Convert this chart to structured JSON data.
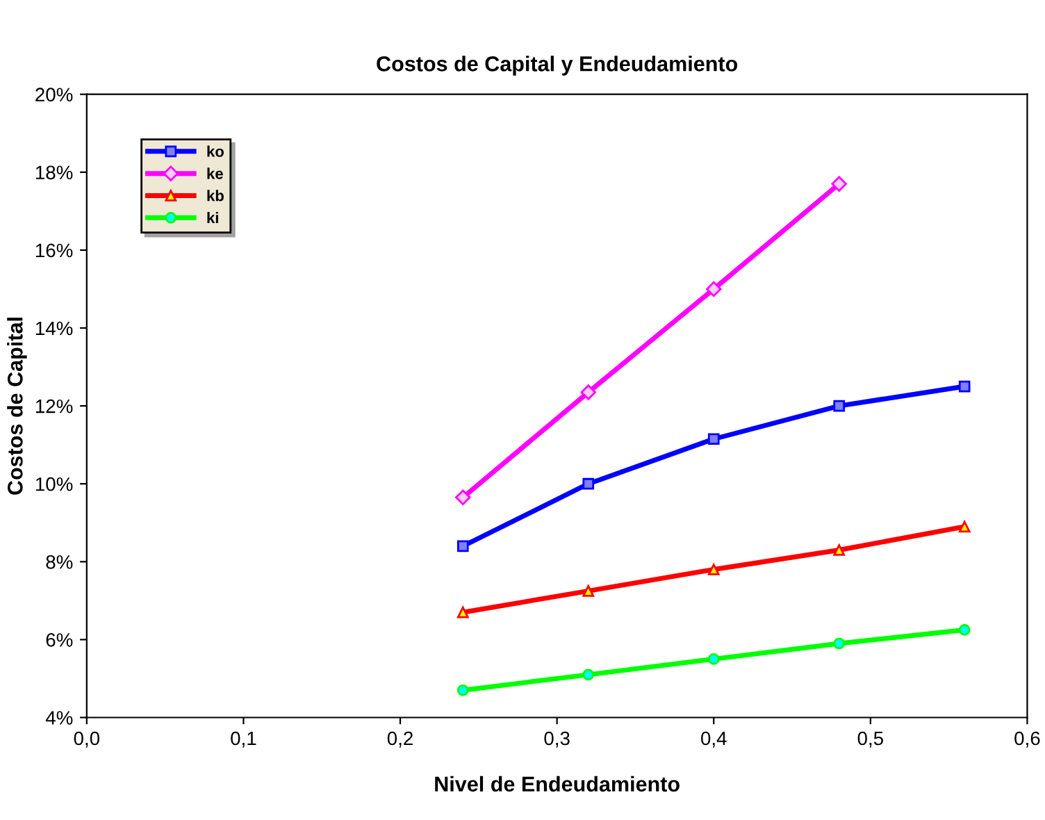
{
  "chart_data": {
    "type": "line",
    "title": "Costos de Capital y Endeudamiento",
    "xlabel": "Nivel de Endeudamiento",
    "ylabel": "Costos de Capital",
    "x": [
      0.24,
      0.32,
      0.4,
      0.48,
      0.56
    ],
    "series": [
      {
        "name": "ko",
        "color": "#0000ff",
        "marker": "square",
        "values": [
          8.4,
          10.0,
          11.15,
          12.0,
          12.5
        ]
      },
      {
        "name": "ke",
        "color": "#ff00ff",
        "marker": "diamond",
        "values": [
          9.65,
          12.35,
          15.0,
          17.7,
          null
        ]
      },
      {
        "name": "kb",
        "color": "#ff0000",
        "marker": "triangle",
        "values": [
          6.7,
          7.25,
          7.8,
          8.3,
          8.9
        ]
      },
      {
        "name": "ki",
        "color": "#00ff00",
        "marker": "circle",
        "values": [
          4.7,
          5.1,
          5.5,
          5.9,
          6.25
        ]
      }
    ],
    "xlim": [
      0,
      0.6
    ],
    "xticks": [
      {
        "value": 0,
        "label": "0,0"
      },
      {
        "value": 0.1,
        "label": "0,1"
      },
      {
        "value": 0.2,
        "label": "0,2"
      },
      {
        "value": 0.3,
        "label": "0,3"
      },
      {
        "value": 0.4,
        "label": "0,4"
      },
      {
        "value": 0.5,
        "label": "0,5"
      },
      {
        "value": 0.6,
        "label": "0,6"
      }
    ],
    "ylim": [
      4,
      20
    ],
    "yticks": [
      {
        "value": 4,
        "label": "4%"
      },
      {
        "value": 6,
        "label": "6%"
      },
      {
        "value": 8,
        "label": "8%"
      },
      {
        "value": 10,
        "label": "10%"
      },
      {
        "value": 12,
        "label": "12%"
      },
      {
        "value": 14,
        "label": "14%"
      },
      {
        "value": 16,
        "label": "16%"
      },
      {
        "value": 18,
        "label": "18%"
      },
      {
        "value": 20,
        "label": "20%"
      }
    ],
    "grid": false,
    "legend": "top left"
  }
}
